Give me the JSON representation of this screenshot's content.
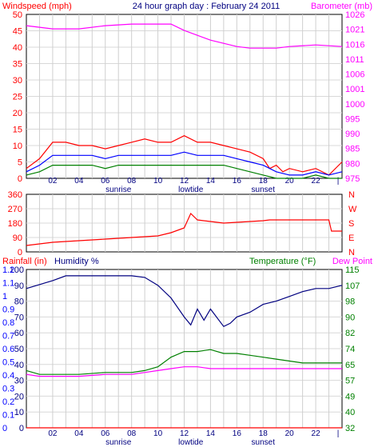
{
  "chart_data": [
    {
      "type": "line",
      "title": "24 hour graph day : February 24 2011",
      "left_axis_label": "Windspeed (mph)",
      "right_axis_label": "Barometer (mb)",
      "left_ticks": [
        "0",
        "5",
        "10",
        "15",
        "20",
        "25",
        "30",
        "35",
        "40",
        "45",
        "50"
      ],
      "right_ticks": [
        "975",
        "980",
        "985",
        "990",
        "995",
        "1000",
        "1001",
        "1006",
        "1011",
        "1016",
        "1021",
        "1026"
      ],
      "x_ticks": [
        "02",
        "04",
        "06",
        "08",
        "10",
        "12",
        "14",
        "16",
        "18",
        "20",
        "22",
        "|"
      ],
      "markers": [
        "sunrise",
        "lowtide",
        "sunset"
      ],
      "ylim_left": [
        0,
        50
      ],
      "x_hours": [
        0,
        24
      ],
      "series": [
        {
          "color": "#ff00ff",
          "axis": "right",
          "x": [
            0,
            2,
            4,
            6,
            8,
            10,
            11,
            12,
            14,
            16,
            17,
            18,
            19,
            20,
            22,
            24
          ],
          "values": [
            1022.5,
            1021.5,
            1021.5,
            1022.5,
            1023,
            1023,
            1023,
            1021,
            1018,
            1016,
            1015.5,
            1015.5,
            1015.5,
            1016,
            1016.5,
            1016
          ]
        },
        {
          "color": "#ff0000",
          "axis": "left",
          "style": "gusts",
          "x": [
            0,
            1,
            2,
            3,
            4,
            5,
            6,
            7,
            8,
            9,
            10,
            11,
            12,
            13,
            14,
            15,
            16,
            17,
            18,
            18.5,
            19,
            19.5,
            20,
            21,
            22,
            23,
            24
          ],
          "values": [
            3,
            6,
            11,
            11,
            10,
            10,
            9,
            10,
            11,
            12,
            11,
            11,
            13,
            11,
            11,
            10,
            9,
            8,
            6,
            3,
            4,
            2,
            3,
            2,
            3,
            1,
            5
          ]
        },
        {
          "color": "#0000ff",
          "axis": "left",
          "style": "average",
          "x": [
            0,
            1,
            2,
            3,
            4,
            5,
            6,
            7,
            8,
            9,
            10,
            11,
            12,
            13,
            14,
            15,
            16,
            17,
            18,
            19,
            20,
            21,
            22,
            23,
            24
          ],
          "values": [
            2,
            4,
            7,
            7,
            7,
            7,
            6,
            7,
            7,
            7,
            7,
            7,
            8,
            7,
            7,
            7,
            6,
            5,
            4,
            2,
            1,
            1,
            2,
            1,
            2
          ]
        },
        {
          "color": "#008000",
          "axis": "left",
          "style": "lull",
          "x": [
            0,
            1,
            2,
            3,
            4,
            5,
            6,
            7,
            8,
            9,
            10,
            11,
            12,
            13,
            14,
            15,
            16,
            17,
            18,
            19,
            20,
            21,
            22,
            23,
            24
          ],
          "values": [
            1,
            2,
            4,
            4,
            4,
            4,
            3,
            4,
            4,
            4,
            4,
            4,
            4,
            4,
            4,
            4,
            3,
            2,
            1,
            0,
            0,
            0,
            1,
            0,
            0
          ]
        }
      ]
    },
    {
      "type": "line",
      "left_ticks": [
        "360",
        "270",
        "180",
        "90",
        "0"
      ],
      "right_ticks": [
        "N",
        "W",
        "S",
        "E",
        "N"
      ],
      "x_ticks": [
        "02",
        "04",
        "06",
        "08",
        "10",
        "12",
        "14",
        "16",
        "18",
        "20",
        "22",
        "|"
      ],
      "ylim_left": [
        0,
        360
      ],
      "series": [
        {
          "color": "#ff0000",
          "axis": "left",
          "x": [
            0,
            2,
            4,
            6,
            8,
            10,
            11,
            12,
            12.5,
            13,
            14,
            15,
            16,
            17,
            18,
            18.5,
            20,
            22,
            23,
            23.2,
            24
          ],
          "values": [
            40,
            60,
            70,
            80,
            90,
            100,
            120,
            150,
            240,
            200,
            190,
            180,
            185,
            190,
            195,
            200,
            200,
            200,
            200,
            130,
            130
          ]
        }
      ]
    },
    {
      "type": "line",
      "left_axis_label": "Rainfall (in)",
      "humidity_label": "Humidity %",
      "temp_label": "Temperature (°F)",
      "dewpoint_label": "Dew Point",
      "rain_ticks": [
        "0",
        "0.1",
        "0.2",
        "0.3",
        "0.4",
        "0.5",
        "0.6",
        "0.7",
        "0.8",
        "0.9",
        "1",
        "1.1",
        "1.2"
      ],
      "humidity_ticks": [
        "0",
        "10",
        "20",
        "30",
        "40",
        "50",
        "60",
        "70",
        "80",
        "90",
        "100"
      ],
      "temp_ticks": [
        "32",
        "40",
        "49",
        "57",
        "65",
        "74",
        "82",
        "90",
        "98",
        "107",
        "115"
      ],
      "x_ticks": [
        "02",
        "04",
        "06",
        "08",
        "10",
        "12",
        "14",
        "16",
        "18",
        "20",
        "22",
        "|"
      ],
      "markers": [
        "sunrise",
        "lowtide",
        "sunset"
      ],
      "series": [
        {
          "color": "#ff0000",
          "axis": "rain",
          "name": "Rainfall",
          "x": [
            0,
            24
          ],
          "values": [
            0,
            0
          ]
        },
        {
          "color": "#000080",
          "axis": "humidity",
          "name": "Humidity",
          "x": [
            0,
            2,
            3,
            4,
            6,
            8,
            9,
            10,
            11,
            12,
            12.5,
            13,
            13.5,
            14,
            15,
            15.5,
            16,
            17,
            18,
            19,
            20,
            21,
            22,
            23,
            24
          ],
          "values": [
            88,
            93,
            96,
            96,
            96,
            96,
            95,
            90,
            82,
            70,
            65,
            75,
            68,
            75,
            64,
            66,
            70,
            73,
            78,
            80,
            83,
            86,
            88,
            88,
            90
          ]
        },
        {
          "color": "#008000",
          "axis": "temp",
          "name": "Temperature",
          "x": [
            0,
            1,
            2,
            4,
            6,
            8,
            9,
            10,
            11,
            12,
            13,
            14,
            15,
            16,
            17,
            18,
            19,
            20,
            21,
            22,
            23,
            24
          ],
          "values": [
            62,
            60,
            60,
            60,
            61,
            61,
            62,
            64,
            69,
            72,
            72,
            73,
            71,
            71,
            70,
            69,
            68,
            67,
            66,
            66,
            66,
            66
          ]
        },
        {
          "color": "#ff00ff",
          "axis": "temp",
          "name": "Dew Point",
          "x": [
            0,
            1,
            2,
            4,
            6,
            8,
            9,
            10,
            11,
            12,
            13,
            14,
            15,
            16,
            17,
            18,
            19,
            20,
            21,
            22,
            23,
            24
          ],
          "values": [
            60,
            59,
            59,
            59,
            60,
            60,
            61,
            62,
            63,
            64,
            64,
            63,
            63,
            63,
            63,
            63,
            63,
            63,
            63,
            63,
            63,
            63
          ]
        }
      ]
    }
  ]
}
